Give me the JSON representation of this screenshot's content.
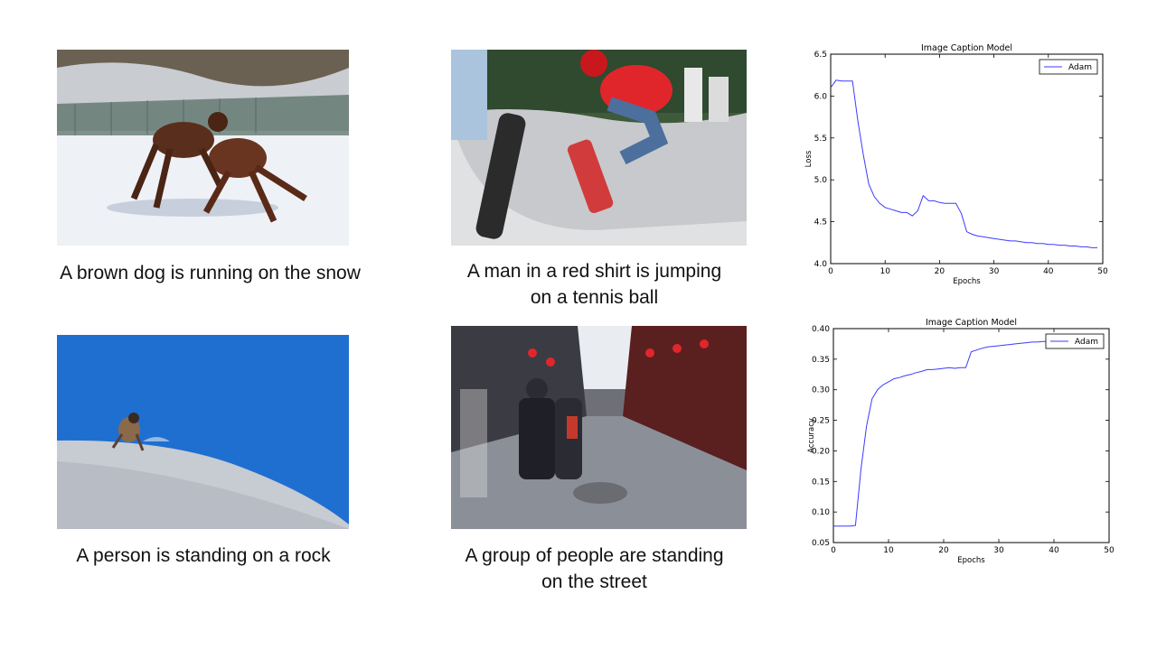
{
  "slide": {
    "captions": {
      "dog": "A brown dog is running on the snow",
      "skater_line1": "A man in a red shirt is jumping",
      "skater_line2": "on a tennis ball",
      "climber": "A person is standing on a rock",
      "street_line1": "A group of people are standing",
      "street_line2": "on the street"
    }
  },
  "colors": {
    "series": "#3b3bff",
    "sky": "#1f6fd1",
    "snow": "#eef0f4",
    "red_shirt": "#e1262b"
  },
  "icons": {
    "photo_dog": "two-dogs-playing-in-snow",
    "photo_skater": "skateboarder-jumping",
    "photo_climber": "climber-on-snowy-slope",
    "photo_street": "busy-shopping-street"
  },
  "chart_data": [
    {
      "type": "line",
      "title": "Image Caption Model",
      "xlabel": "Epochs",
      "ylabel": "Loss",
      "xlim": [
        0,
        50
      ],
      "ylim": [
        4.0,
        6.5
      ],
      "xticks": [
        "0",
        "10",
        "20",
        "30",
        "40",
        "50"
      ],
      "yticks": [
        "4.0",
        "4.5",
        "5.0",
        "5.5",
        "6.0",
        "6.5"
      ],
      "legend": "top-right",
      "series": [
        {
          "name": "Adam",
          "x": [
            0,
            1,
            2,
            3,
            4,
            5,
            6,
            7,
            8,
            9,
            10,
            11,
            12,
            13,
            14,
            15,
            16,
            17,
            18,
            19,
            20,
            21,
            22,
            23,
            24,
            25,
            26,
            27,
            28,
            29,
            30,
            31,
            32,
            33,
            34,
            35,
            36,
            37,
            38,
            39,
            40,
            41,
            42,
            43,
            44,
            45,
            46,
            47,
            48,
            49
          ],
          "values": [
            6.1,
            6.19,
            6.18,
            6.18,
            6.18,
            5.7,
            5.3,
            4.95,
            4.8,
            4.72,
            4.67,
            4.65,
            4.63,
            4.61,
            4.61,
            4.57,
            4.63,
            4.81,
            4.75,
            4.75,
            4.73,
            4.72,
            4.72,
            4.72,
            4.6,
            4.38,
            4.35,
            4.33,
            4.32,
            4.31,
            4.3,
            4.29,
            4.28,
            4.27,
            4.27,
            4.26,
            4.25,
            4.25,
            4.24,
            4.24,
            4.23,
            4.23,
            4.22,
            4.22,
            4.21,
            4.21,
            4.2,
            4.2,
            4.19,
            4.19
          ]
        }
      ]
    },
    {
      "type": "line",
      "title": "Image Caption Model",
      "xlabel": "Epochs",
      "ylabel": "Accuracy",
      "xlim": [
        0,
        50
      ],
      "ylim": [
        0.05,
        0.4
      ],
      "xticks": [
        "0",
        "10",
        "20",
        "30",
        "40",
        "50"
      ],
      "yticks": [
        "0.05",
        "0.10",
        "0.15",
        "0.20",
        "0.25",
        "0.30",
        "0.35",
        "0.40"
      ],
      "legend": "top-right",
      "series": [
        {
          "name": "Adam",
          "x": [
            0,
            1,
            2,
            3,
            4,
            5,
            6,
            7,
            8,
            9,
            10,
            11,
            12,
            13,
            14,
            15,
            16,
            17,
            18,
            19,
            20,
            21,
            22,
            23,
            24,
            25,
            26,
            27,
            28,
            29,
            30,
            31,
            32,
            33,
            34,
            35,
            36,
            37,
            38,
            39,
            40,
            41,
            42,
            43,
            44,
            45,
            46,
            47,
            48,
            49
          ],
          "values": [
            0.077,
            0.077,
            0.077,
            0.077,
            0.078,
            0.17,
            0.24,
            0.285,
            0.3,
            0.308,
            0.313,
            0.318,
            0.32,
            0.323,
            0.325,
            0.328,
            0.33,
            0.333,
            0.333,
            0.334,
            0.335,
            0.336,
            0.335,
            0.336,
            0.336,
            0.362,
            0.365,
            0.368,
            0.37,
            0.371,
            0.372,
            0.373,
            0.374,
            0.375,
            0.376,
            0.377,
            0.378,
            0.378,
            0.379,
            0.379,
            0.38,
            0.38,
            0.38,
            0.381,
            0.381,
            0.381,
            0.381,
            0.382,
            0.382,
            0.382
          ]
        }
      ]
    }
  ]
}
